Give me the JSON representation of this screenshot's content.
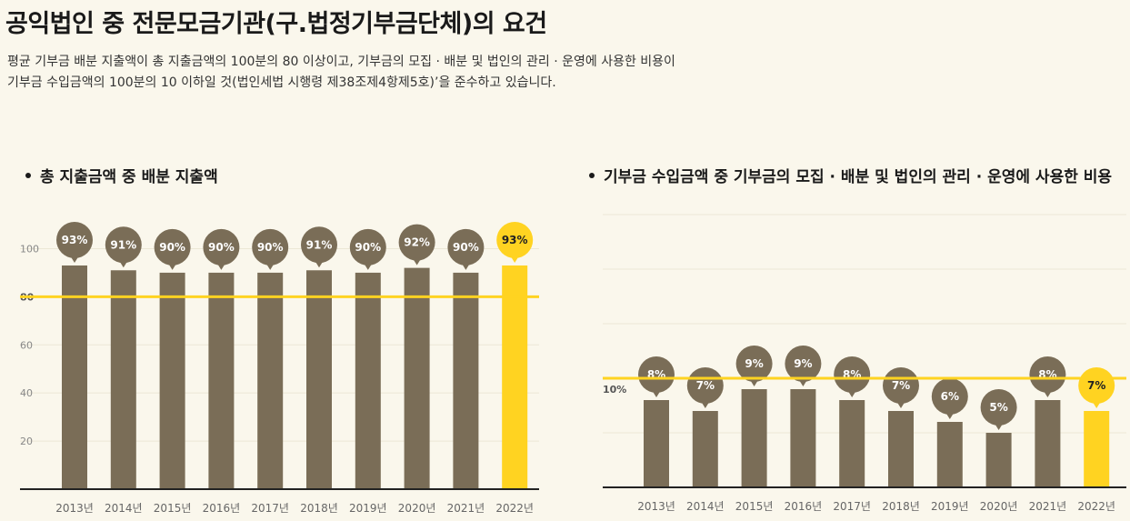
{
  "page": {
    "title": "공익법인 중 전문모금기관(구.법정기부금단체)의 요건",
    "intro_line1": "평균 기부금 배분 지출액이 총 지출금액의 100분의 80 이상이고, 기부금의 모집 · 배분 및 법인의 관리 · 운영에 사용한 비용이",
    "intro_line2": "기부금 수입금액의 100분의 10 이하일 것(법인세법 시행령 제38조제4항제5호)’을 준수하고 있습니다."
  },
  "colors": {
    "background": "#faf7ec",
    "bar": "#7a6d57",
    "highlight_bar": "#ffd321",
    "threshold_line": "#ffd321",
    "axis": "#222222",
    "grid": "#ece7d6"
  },
  "chart_data": [
    {
      "type": "bar",
      "title": "총 지출금액 중 배분 지출액",
      "categories": [
        "2013년",
        "2014년",
        "2015년",
        "2016년",
        "2017년",
        "2018년",
        "2019년",
        "2020년",
        "2021년",
        "2022년"
      ],
      "values": [
        93,
        91,
        90,
        90,
        90,
        91,
        90,
        92,
        90,
        93
      ],
      "value_labels": [
        "93%",
        "91%",
        "90%",
        "90%",
        "90%",
        "91%",
        "90%",
        "92%",
        "90%",
        "93%"
      ],
      "highlight_index": 9,
      "ylim": [
        0,
        110
      ],
      "yticks": [
        "20",
        "40",
        "60",
        "80",
        "100"
      ],
      "ytick_values": [
        20,
        40,
        60,
        80,
        100
      ],
      "threshold": 80,
      "threshold_label": "80",
      "grid": true
    },
    {
      "type": "bar",
      "title": "기부금 수입금액 중 기부금의 모집 · 배분 및 법인의 관리 · 운영에 사용한 비용",
      "categories": [
        "2013년",
        "2014년",
        "2015년",
        "2016년",
        "2017년",
        "2018년",
        "2019년",
        "2020년",
        "2021년",
        "2022년"
      ],
      "values": [
        8,
        7,
        9,
        9,
        8,
        7,
        6,
        5,
        8,
        7
      ],
      "value_labels": [
        "8%",
        "7%",
        "9%",
        "9%",
        "8%",
        "7%",
        "6%",
        "5%",
        "8%",
        "7%"
      ],
      "highlight_index": 9,
      "ylim": [
        0,
        25
      ],
      "threshold": 10,
      "threshold_label": "10%",
      "grid": true
    }
  ]
}
